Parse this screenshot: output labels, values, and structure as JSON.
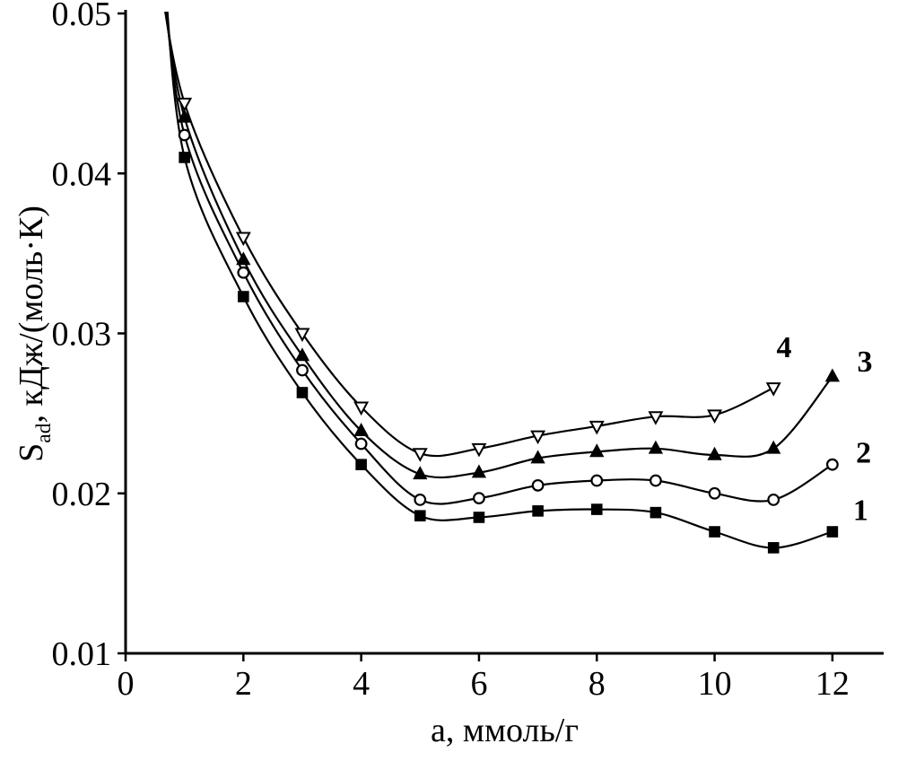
{
  "figure": {
    "background": "#ffffff"
  },
  "chart_data": {
    "type": "line",
    "title": "",
    "xlabel": "а, ммоль/г",
    "ylabel": "Sad, кДж/(моль·К)",
    "ylabel_parts": {
      "main": "S",
      "sub": "ad",
      "rest": ", кДж/(моль·К)"
    },
    "xlim": [
      0,
      12.87
    ],
    "ylim": [
      0.01,
      0.05
    ],
    "xticks": [
      0,
      2,
      4,
      6,
      8,
      10,
      12
    ],
    "xtick_labels": [
      "0",
      "2",
      "4",
      "6",
      "8",
      "10",
      "12"
    ],
    "yticks": [
      0.01,
      0.02,
      0.03,
      0.04,
      0.05
    ],
    "ytick_labels": [
      "0.01",
      "0.02",
      "0.03",
      "0.04",
      "0.05"
    ],
    "grid": false,
    "legend": "inline-curve-labels",
    "axis_color": "#000000",
    "line_color": "#000000",
    "series": [
      {
        "name": "1",
        "marker": "square",
        "marker_fill": "filled",
        "color": "#000000",
        "x": [
          1,
          2,
          3,
          4,
          5,
          6,
          7,
          8,
          9,
          10,
          11,
          12
        ],
        "y": [
          0.041,
          0.0323,
          0.0263,
          0.0218,
          0.0186,
          0.0185,
          0.0189,
          0.019,
          0.0188,
          0.0176,
          0.0166,
          0.0176
        ],
        "lead_point": [
          0.66,
          0.0525
        ],
        "label_at": [
          12.35,
          0.019
        ]
      },
      {
        "name": "2",
        "marker": "circle",
        "marker_fill": "open",
        "color": "#000000",
        "x": [
          1,
          2,
          3,
          4,
          5,
          6,
          7,
          8,
          9,
          10,
          11,
          12
        ],
        "y": [
          0.0424,
          0.0338,
          0.0277,
          0.0231,
          0.0196,
          0.0197,
          0.0205,
          0.0208,
          0.0208,
          0.02,
          0.0196,
          0.0218
        ],
        "lead_point": [
          0.63,
          0.0525
        ],
        "label_at": [
          12.4,
          0.0226
        ]
      },
      {
        "name": "3",
        "marker": "triangle-up",
        "marker_fill": "filled",
        "color": "#000000",
        "x": [
          1,
          2,
          3,
          4,
          5,
          6,
          7,
          8,
          9,
          10,
          11,
          12
        ],
        "y": [
          0.0435,
          0.0346,
          0.0286,
          0.0239,
          0.0212,
          0.0213,
          0.0222,
          0.0226,
          0.0228,
          0.0224,
          0.0228,
          0.0273
        ],
        "lead_point": [
          0.6,
          0.0525
        ],
        "label_at": [
          12.42,
          0.0283
        ]
      },
      {
        "name": "4",
        "marker": "triangle-down",
        "marker_fill": "open",
        "color": "#000000",
        "x": [
          1,
          2,
          3,
          4,
          5,
          6,
          7,
          8,
          9,
          10,
          11
        ],
        "y": [
          0.0444,
          0.036,
          0.03,
          0.0254,
          0.0225,
          0.0228,
          0.0236,
          0.0242,
          0.0248,
          0.0249,
          0.0266
        ],
        "lead_point": [
          0.57,
          0.0525
        ],
        "label_at": [
          11.05,
          0.0292
        ]
      }
    ]
  }
}
